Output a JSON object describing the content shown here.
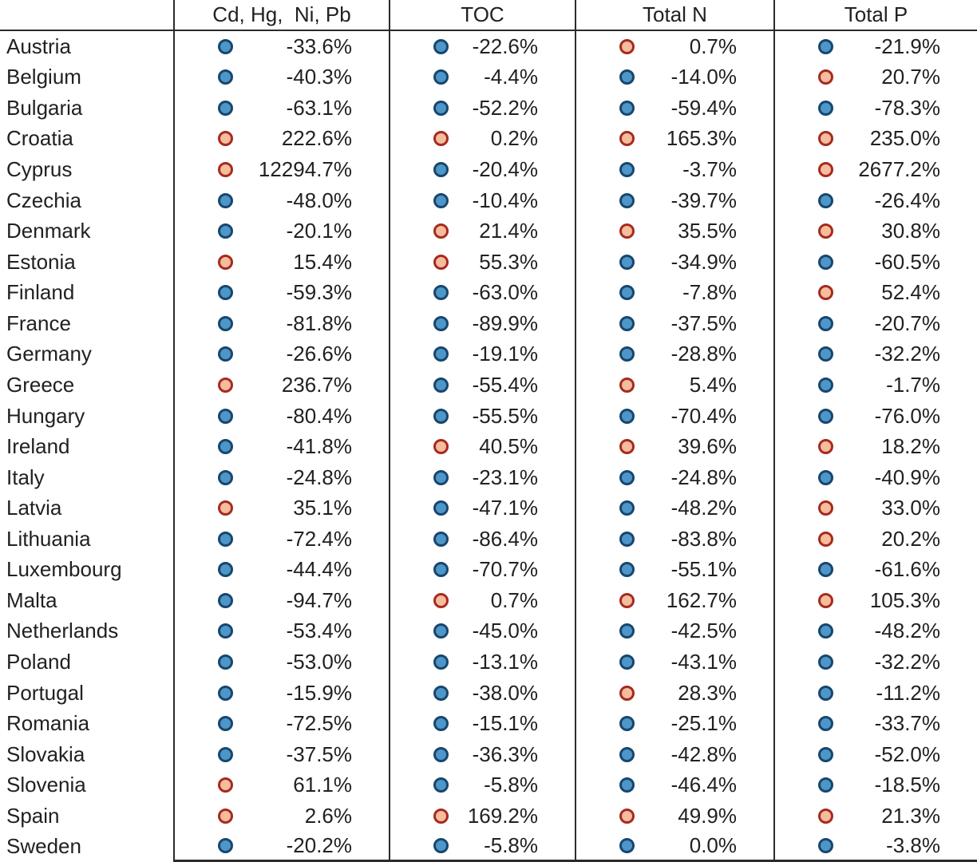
{
  "chart_data": {
    "type": "table",
    "description_of_marks": "blue filled circle marker next to negative or zero percentages, salmon filled circle marker next to positive percentages",
    "columns": [
      "Cd, Hg,  Ni, Pb",
      "TOC",
      "Total N",
      "Total P"
    ],
    "country_column_header": "",
    "rows": [
      {
        "country": "Austria",
        "values": [
          "-33.6%",
          "-22.6%",
          "0.7%",
          "-21.9%"
        ]
      },
      {
        "country": "Belgium",
        "values": [
          "-40.3%",
          "-4.4%",
          "-14.0%",
          "20.7%"
        ]
      },
      {
        "country": "Bulgaria",
        "values": [
          "-63.1%",
          "-52.2%",
          "-59.4%",
          "-78.3%"
        ]
      },
      {
        "country": "Croatia",
        "values": [
          "222.6%",
          "0.2%",
          "165.3%",
          "235.0%"
        ]
      },
      {
        "country": "Cyprus",
        "values": [
          "12294.7%",
          "-20.4%",
          "-3.7%",
          "2677.2%"
        ]
      },
      {
        "country": "Czechia",
        "values": [
          "-48.0%",
          "-10.4%",
          "-39.7%",
          "-26.4%"
        ]
      },
      {
        "country": "Denmark",
        "values": [
          "-20.1%",
          "21.4%",
          "35.5%",
          "30.8%"
        ]
      },
      {
        "country": "Estonia",
        "values": [
          "15.4%",
          "55.3%",
          "-34.9%",
          "-60.5%"
        ]
      },
      {
        "country": "Finland",
        "values": [
          "-59.3%",
          "-63.0%",
          "-7.8%",
          "52.4%"
        ]
      },
      {
        "country": "France",
        "values": [
          "-81.8%",
          "-89.9%",
          "-37.5%",
          "-20.7%"
        ]
      },
      {
        "country": "Germany",
        "values": [
          "-26.6%",
          "-19.1%",
          "-28.8%",
          "-32.2%"
        ]
      },
      {
        "country": "Greece",
        "values": [
          "236.7%",
          "-55.4%",
          "5.4%",
          "-1.7%"
        ]
      },
      {
        "country": "Hungary",
        "values": [
          "-80.4%",
          "-55.5%",
          "-70.4%",
          "-76.0%"
        ]
      },
      {
        "country": "Ireland",
        "values": [
          "-41.8%",
          "40.5%",
          "39.6%",
          "18.2%"
        ]
      },
      {
        "country": "Italy",
        "values": [
          "-24.8%",
          "-23.1%",
          "-24.8%",
          "-40.9%"
        ]
      },
      {
        "country": "Latvia",
        "values": [
          "35.1%",
          "-47.1%",
          "-48.2%",
          "33.0%"
        ]
      },
      {
        "country": "Lithuania",
        "values": [
          "-72.4%",
          "-86.4%",
          "-83.8%",
          "20.2%"
        ]
      },
      {
        "country": "Luxembourg",
        "values": [
          "-44.4%",
          "-70.7%",
          "-55.1%",
          "-61.6%"
        ]
      },
      {
        "country": "Malta",
        "values": [
          "-94.7%",
          "0.7%",
          "162.7%",
          "105.3%"
        ]
      },
      {
        "country": "Netherlands",
        "values": [
          "-53.4%",
          "-45.0%",
          "-42.5%",
          "-48.2%"
        ]
      },
      {
        "country": "Poland",
        "values": [
          "-53.0%",
          "-13.1%",
          "-43.1%",
          "-32.2%"
        ]
      },
      {
        "country": "Portugal",
        "values": [
          "-15.9%",
          "-38.0%",
          "28.3%",
          "-11.2%"
        ]
      },
      {
        "country": "Romania",
        "values": [
          "-72.5%",
          "-15.1%",
          "-25.1%",
          "-33.7%"
        ]
      },
      {
        "country": "Slovakia",
        "values": [
          "-37.5%",
          "-36.3%",
          "-42.8%",
          "-52.0%"
        ]
      },
      {
        "country": "Slovenia",
        "values": [
          "61.1%",
          "-5.8%",
          "-46.4%",
          "-18.5%"
        ]
      },
      {
        "country": "Spain",
        "values": [
          "2.6%",
          "169.2%",
          "49.9%",
          "21.3%"
        ]
      },
      {
        "country": "Sweden",
        "values": [
          "-20.2%",
          "-5.8%",
          "0.0%",
          "-3.8%"
        ]
      }
    ]
  },
  "colors": {
    "decrease_dot_fill": "#4E96C8",
    "decrease_dot_border": "#17466E",
    "increase_dot_fill": "#F5BD9D",
    "increase_dot_border": "#A62A1E",
    "grid_line": "#2b2b2b",
    "text": "#212121"
  }
}
